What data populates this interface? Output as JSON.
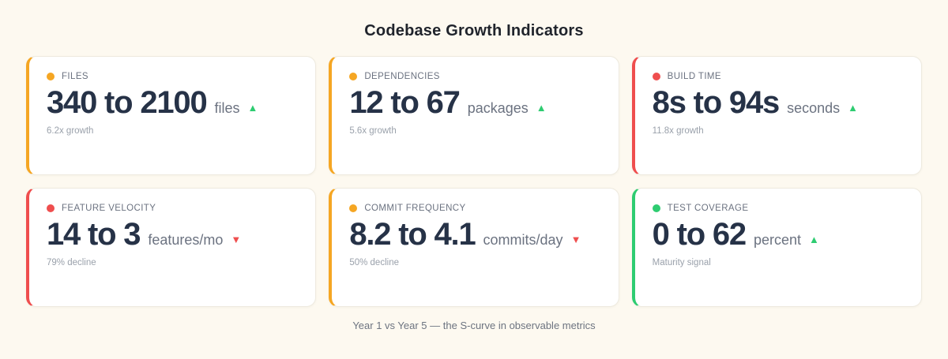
{
  "page": {
    "title": "Codebase Growth Indicators",
    "footer": "Year 1 vs Year 5 — the S-curve in observable metrics"
  },
  "colors": {
    "background": "#fdf9f0",
    "card_background": "#ffffff",
    "card_border": "#eeeadf",
    "accent_orange": "#f5a623",
    "accent_red": "#ef4e4e",
    "accent_green": "#2ecc71",
    "value_navy": "#263247",
    "label_gray": "#6b7280",
    "note_gray": "#9aa1ab"
  },
  "cards": [
    {
      "label": "FILES",
      "accent": "#f5a623",
      "value": "340 to 2100",
      "unit": "files",
      "trend": {
        "glyph": "▲",
        "color": "#2ecc71",
        "direction": "up"
      },
      "note": "6.2x growth"
    },
    {
      "label": "DEPENDENCIES",
      "accent": "#f5a623",
      "value": "12 to 67",
      "unit": "packages",
      "trend": {
        "glyph": "▲",
        "color": "#2ecc71",
        "direction": "up"
      },
      "note": "5.6x growth"
    },
    {
      "label": "BUILD TIME",
      "accent": "#ef4e4e",
      "value": "8s to 94s",
      "unit": "seconds",
      "trend": {
        "glyph": "▲",
        "color": "#2ecc71",
        "direction": "up"
      },
      "note": "11.8x growth"
    },
    {
      "label": "FEATURE VELOCITY",
      "accent": "#ef4e4e",
      "value": "14 to 3",
      "unit": "features/mo",
      "trend": {
        "glyph": "▼",
        "color": "#ef4e4e",
        "direction": "down"
      },
      "note": "79% decline"
    },
    {
      "label": "COMMIT FREQUENCY",
      "accent": "#f5a623",
      "value": "8.2 to 4.1",
      "unit": "commits/day",
      "trend": {
        "glyph": "▼",
        "color": "#ef4e4e",
        "direction": "down"
      },
      "note": "50% decline"
    },
    {
      "label": "TEST COVERAGE",
      "accent": "#2ecc71",
      "value": "0 to 62",
      "unit": "percent",
      "trend": {
        "glyph": "▲",
        "color": "#2ecc71",
        "direction": "up"
      },
      "note": "Maturity signal"
    }
  ],
  "chart_data": {
    "type": "table",
    "title": "Codebase Growth Indicators",
    "subtitle": "Year 1 vs Year 5 — the S-curve in observable metrics",
    "columns": [
      "metric",
      "year1_value",
      "year5_value",
      "unit",
      "trend",
      "annotation"
    ],
    "rows": [
      [
        "Files",
        340,
        2100,
        "files",
        "up",
        "6.2x growth"
      ],
      [
        "Dependencies",
        12,
        67,
        "packages",
        "up",
        "5.6x growth"
      ],
      [
        "Build Time",
        8,
        94,
        "seconds",
        "up",
        "11.8x growth"
      ],
      [
        "Feature Velocity",
        14,
        3,
        "features/mo",
        "down",
        "79% decline"
      ],
      [
        "Commit Frequency",
        8.2,
        4.1,
        "commits/day",
        "down",
        "50% decline"
      ],
      [
        "Test Coverage",
        0,
        62,
        "percent",
        "up",
        "Maturity signal"
      ]
    ]
  }
}
